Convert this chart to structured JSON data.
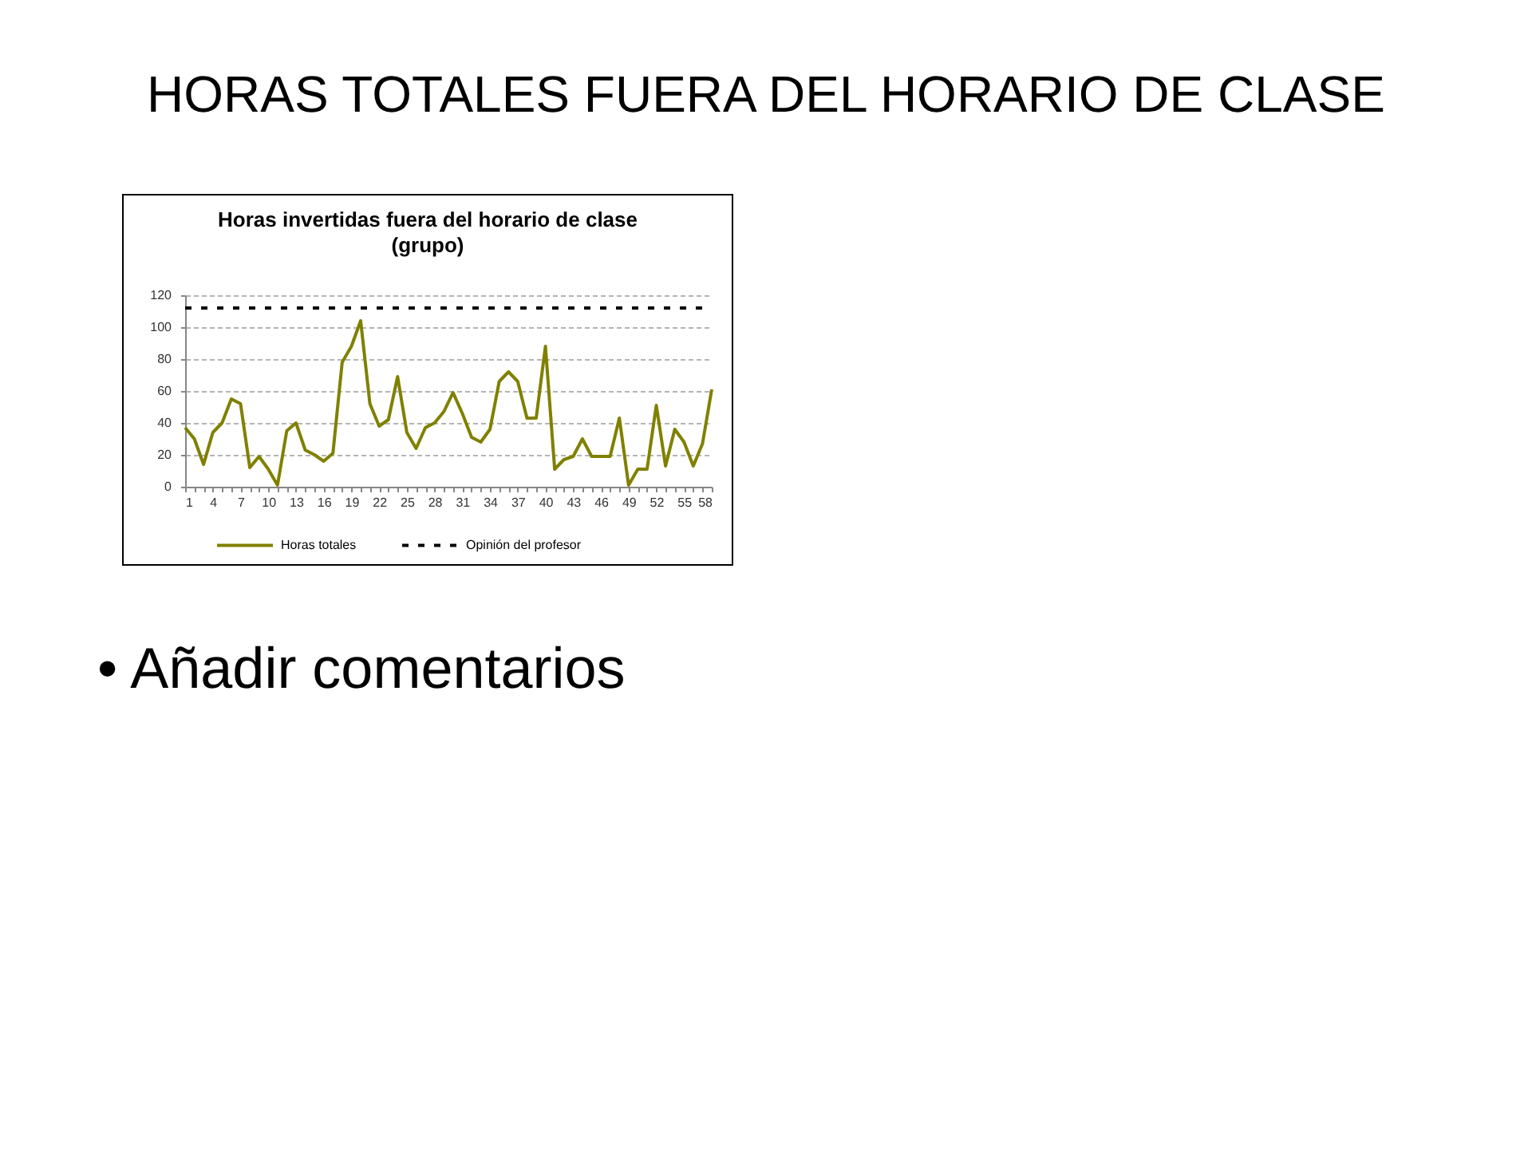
{
  "chart_data": {
    "type": "line",
    "title": "HORAS TOTALES FUERA DEL HORARIO DE CLASE",
    "subtitle": "Horas invertidas fuera del horario de clase\n(grupo)",
    "annotations": [
      "• Añadir comentarios"
    ],
    "x": [
      1,
      2,
      3,
      4,
      5,
      6,
      7,
      8,
      9,
      10,
      11,
      12,
      13,
      14,
      15,
      16,
      17,
      18,
      19,
      20,
      21,
      22,
      23,
      24,
      25,
      26,
      27,
      28,
      29,
      30,
      31,
      32,
      33,
      34,
      35,
      36,
      37,
      38,
      39,
      40,
      41,
      42,
      43,
      44,
      45,
      46,
      47,
      48,
      49,
      50,
      51,
      52,
      53,
      54,
      55,
      56,
      57,
      58
    ],
    "xlim": [
      1,
      58
    ],
    "xticks": [
      1,
      {
        "value": 2,
        "label": null
      },
      {
        "value": 3,
        "label": null
      },
      4,
      {
        "value": 5,
        "label": null
      },
      {
        "value": 6,
        "label": null
      },
      7,
      {
        "value": 8,
        "label": null
      },
      {
        "value": 9,
        "label": null
      },
      10,
      {
        "value": 11,
        "label": null
      },
      {
        "value": 12,
        "label": null
      },
      13,
      {
        "value": 14,
        "label": null
      },
      {
        "value": 15,
        "label": null
      },
      16,
      {
        "value": 17,
        "label": null
      },
      {
        "value": 18,
        "label": null
      },
      19,
      {
        "value": 20,
        "label": null
      },
      {
        "value": 21,
        "label": null
      },
      22,
      {
        "value": 23,
        "label": null
      },
      {
        "value": 24,
        "label": null
      },
      25,
      {
        "value": 26,
        "label": null
      },
      {
        "value": 27,
        "label": null
      },
      28,
      {
        "value": 29,
        "label": null
      },
      {
        "value": 30,
        "label": null
      },
      31,
      {
        "value": 32,
        "label": null
      },
      {
        "value": 33,
        "label": null
      },
      34,
      {
        "value": 35,
        "label": null
      },
      {
        "value": 36,
        "label": null
      },
      37,
      {
        "value": 38,
        "label": null
      },
      {
        "value": 39,
        "label": null
      },
      40,
      {
        "value": 41,
        "label": null
      },
      {
        "value": 42,
        "label": null
      },
      43,
      {
        "value": 44,
        "label": null
      },
      {
        "value": 45,
        "label": null
      },
      46,
      {
        "value": 47,
        "label": null
      },
      {
        "value": 48,
        "label": null
      },
      49,
      {
        "value": 50,
        "label": null
      },
      {
        "value": 51,
        "label": null
      },
      52,
      {
        "value": 53,
        "label": null
      },
      {
        "value": 54,
        "label": null
      },
      55,
      {
        "value": 56,
        "label": null
      },
      {
        "value": 57,
        "label": null
      },
      58
    ],
    "ylim": [
      0,
      120
    ],
    "yticks": [
      0,
      20,
      40,
      60,
      80,
      100,
      120
    ],
    "grid": "y",
    "legend": "bottom",
    "series": [
      {
        "name": "Horas totales",
        "color": "#808000",
        "line_style": "solid",
        "values": [
          37,
          30,
          14,
          34,
          40,
          55,
          52,
          12,
          19,
          11,
          1,
          35,
          40,
          23,
          20,
          16,
          21,
          78,
          88,
          104,
          52,
          38,
          42,
          69,
          34,
          24,
          37,
          40,
          47,
          59,
          46,
          31,
          28,
          36,
          66,
          72,
          66,
          43,
          43,
          88,
          11,
          17,
          19,
          30,
          19,
          19,
          19,
          43,
          1,
          11,
          11,
          51,
          13,
          36,
          28,
          13,
          27,
          61
        ]
      },
      {
        "name": "Opinión del profesor",
        "color": "#000000",
        "line_style": "dashed",
        "values": [
          112,
          112,
          112,
          112,
          112,
          112,
          112,
          112,
          112,
          112,
          112,
          112,
          112,
          112,
          112,
          112,
          112,
          112,
          112,
          112,
          112,
          112,
          112,
          112,
          112,
          112,
          112,
          112,
          112,
          112,
          112,
          112,
          112,
          112,
          112,
          112,
          112,
          112,
          112,
          112,
          112,
          112,
          112,
          112,
          112,
          112,
          112,
          112,
          112,
          112,
          112,
          112,
          112,
          112,
          112,
          112,
          112,
          112
        ]
      }
    ]
  }
}
